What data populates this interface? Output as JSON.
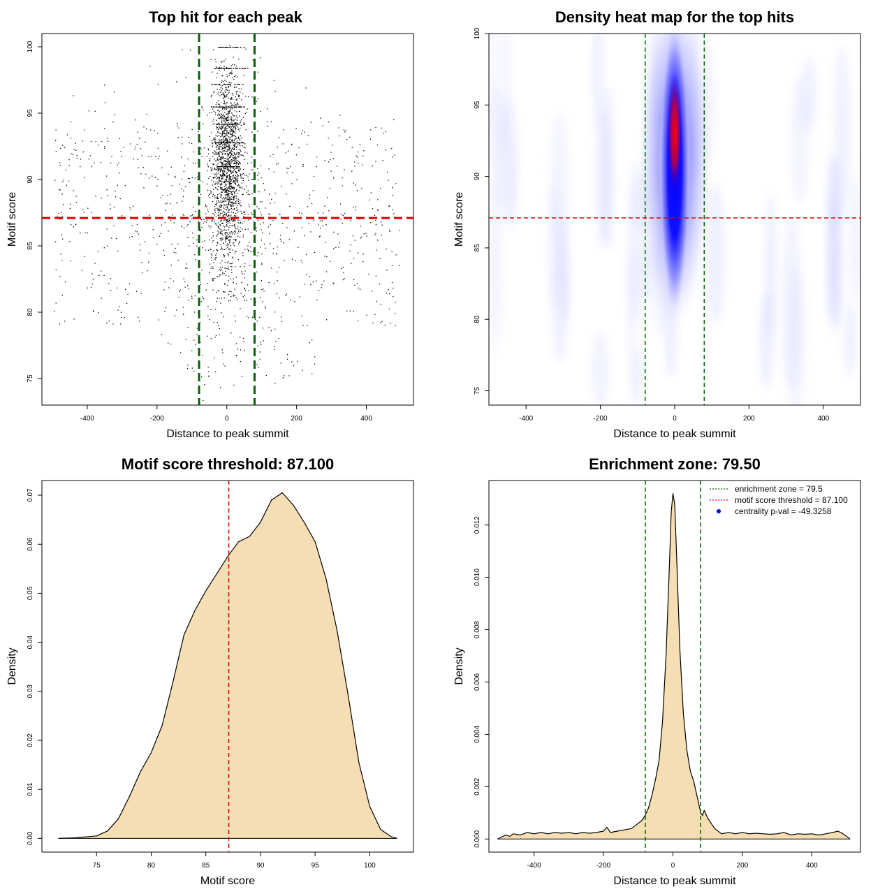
{
  "colors": {
    "zone_line": "#006400",
    "threshold_line": "#dd0000",
    "density_fill": "#f5deb3",
    "point": "#000000"
  },
  "chart_data": [
    {
      "type": "scatter",
      "title": "Top hit for each peak",
      "xlabel": "Distance to peak summit",
      "ylabel": "Motif score",
      "xlim": [
        -530,
        535
      ],
      "ylim": [
        73,
        101
      ],
      "x_ticks": [
        "-400",
        "-200",
        "0",
        "200",
        "400"
      ],
      "y_ticks": [
        "75",
        "80",
        "85",
        "90",
        "95",
        "100"
      ],
      "vlines": [
        -79.5,
        79.5
      ],
      "hline": 87.1,
      "point_bands": [
        {
          "score": 100.0,
          "xmin": -30,
          "xmax": 50,
          "count": 45
        },
        {
          "score": 98.4,
          "xmin": -40,
          "xmax": 60,
          "count": 50
        },
        {
          "score": 97.2,
          "xmin": -45,
          "xmax": 55,
          "count": 40
        },
        {
          "score": 95.5,
          "xmin": -40,
          "xmax": 50,
          "count": 60
        },
        {
          "score": 94.2,
          "xmin": -35,
          "xmax": 50,
          "count": 60
        },
        {
          "score": 92.8,
          "xmin": -35,
          "xmax": 50,
          "count": 55
        },
        {
          "score": 91.0,
          "xmin": -30,
          "xmax": 40,
          "count": 55
        }
      ]
    },
    {
      "type": "heatmap",
      "title": "Density heat map for the top hits",
      "xlabel": "Distance to peak summit",
      "ylabel": "Motif score",
      "xlim": [
        -500,
        500
      ],
      "ylim": [
        74,
        100
      ],
      "x_ticks": [
        "-400",
        "-200",
        "0",
        "200",
        "400"
      ],
      "y_ticks": [
        "75",
        "80",
        "85",
        "90",
        "95",
        "100"
      ],
      "vlines": [
        -79.5,
        79.5
      ],
      "hline": 87.1,
      "peak_center": {
        "x": 0,
        "y": 93
      }
    },
    {
      "type": "area",
      "title": "Motif score threshold: 87.100",
      "xlabel": "Motif score",
      "ylabel": "Density",
      "xlim": [
        70,
        104
      ],
      "ylim": [
        -0.0028,
        0.073
      ],
      "x_ticks": [
        "75",
        "80",
        "85",
        "90",
        "95",
        "100"
      ],
      "y_ticks": [
        "0.00",
        "0.01",
        "0.02",
        "0.03",
        "0.04",
        "0.05",
        "0.06",
        "0.07"
      ],
      "vline": 87.1,
      "x": [
        71.5,
        73,
        75,
        76,
        77,
        78,
        79,
        80,
        81,
        82,
        83,
        84,
        85,
        86,
        87,
        88,
        89,
        90,
        91,
        92,
        93,
        94,
        95,
        96,
        97,
        98,
        99,
        100,
        101,
        102,
        102.5
      ],
      "y": [
        0,
        0.0001,
        0.0005,
        0.0015,
        0.004,
        0.0085,
        0.0135,
        0.0175,
        0.023,
        0.032,
        0.0415,
        0.0465,
        0.0505,
        0.054,
        0.0575,
        0.0605,
        0.0616,
        0.0645,
        0.069,
        0.0705,
        0.068,
        0.0645,
        0.0605,
        0.053,
        0.0425,
        0.0295,
        0.0155,
        0.0065,
        0.0018,
        0.0003,
        0
      ]
    },
    {
      "type": "area",
      "title": "Enrichment zone: 79.50",
      "xlabel": "Distance to peak summit",
      "ylabel": "Density",
      "xlim": [
        -530,
        540
      ],
      "ylim": [
        -0.0005,
        0.0137
      ],
      "x_ticks": [
        "-400",
        "-200",
        "0",
        "200",
        "400"
      ],
      "y_ticks": [
        "0.000",
        "0.002",
        "0.004",
        "0.006",
        "0.008",
        "0.010",
        "0.012"
      ],
      "vlines": [
        -79.5,
        79.5
      ],
      "x": [
        -505,
        -490,
        -480,
        -470,
        -460,
        -440,
        -420,
        -400,
        -380,
        -360,
        -340,
        -320,
        -300,
        -280,
        -260,
        -240,
        -220,
        -200,
        -190,
        -180,
        -160,
        -140,
        -120,
        -100,
        -90,
        -80,
        -70,
        -60,
        -50,
        -40,
        -30,
        -20,
        -10,
        -5,
        0,
        5,
        10,
        20,
        30,
        40,
        50,
        60,
        70,
        80,
        85,
        90,
        100,
        120,
        140,
        160,
        180,
        200,
        220,
        240,
        260,
        280,
        300,
        320,
        340,
        360,
        380,
        400,
        420,
        440,
        460,
        475,
        490,
        500,
        510
      ],
      "y": [
        0,
        0.0001,
        0.00015,
        0.0001,
        0.0002,
        0.00015,
        0.00025,
        0.0002,
        0.00025,
        0.0002,
        0.00025,
        0.00022,
        0.00025,
        0.0002,
        0.00025,
        0.00022,
        0.00025,
        0.0003,
        0.00045,
        0.00025,
        0.0003,
        0.00035,
        0.0004,
        0.0006,
        0.0007,
        0.0009,
        0.0012,
        0.0017,
        0.0023,
        0.003,
        0.0045,
        0.007,
        0.0105,
        0.0125,
        0.0132,
        0.0128,
        0.011,
        0.0072,
        0.0048,
        0.0034,
        0.0026,
        0.0022,
        0.0016,
        0.001,
        0.0009,
        0.0011,
        0.0008,
        0.0004,
        0.0002,
        0.00025,
        0.0002,
        0.00025,
        0.0002,
        0.00022,
        0.0002,
        0.00018,
        0.0002,
        0.00025,
        0.00015,
        0.0002,
        0.00018,
        0.0002,
        0.00015,
        0.0002,
        0.00025,
        0.0003,
        0.0002,
        0.0001,
        0
      ],
      "legend": [
        {
          "label": "enrichment zone = 79.5",
          "color": "#006400",
          "style": "dotted"
        },
        {
          "label": "motif score threshold = 87.100",
          "color": "#dd0000",
          "style": "dotted"
        },
        {
          "label": "centrality p-val = -49.3258",
          "color": "#0000dd",
          "style": "point"
        }
      ]
    }
  ]
}
